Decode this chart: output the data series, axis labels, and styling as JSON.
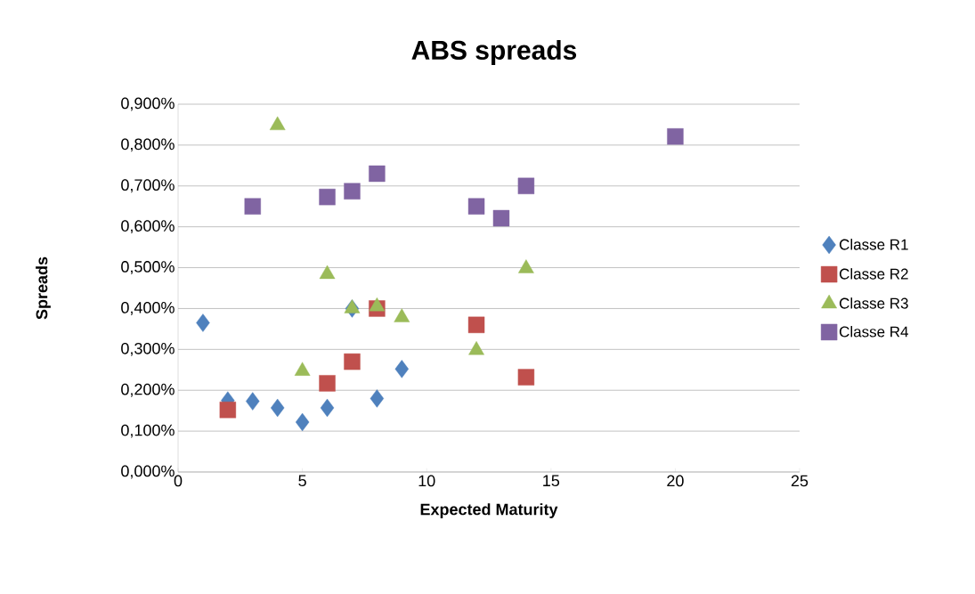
{
  "chart_data": {
    "type": "scatter",
    "title": "ABS spreads",
    "xlabel": "Expected Maturity",
    "ylabel": "Spreads",
    "xlim": [
      0,
      25
    ],
    "xticks": [
      0,
      5,
      10,
      15,
      20,
      25
    ],
    "ylim": [
      0,
      0.9
    ],
    "yticks": [
      {
        "value": 0,
        "label": "0,000%"
      },
      {
        "value": 0.1,
        "label": "0,100%"
      },
      {
        "value": 0.2,
        "label": "0,200%"
      },
      {
        "value": 0.3,
        "label": "0,300%"
      },
      {
        "value": 0.4,
        "label": "0,400%"
      },
      {
        "value": 0.5,
        "label": "0,500%"
      },
      {
        "value": 0.6,
        "label": "0,600%"
      },
      {
        "value": 0.7,
        "label": "0,700%"
      },
      {
        "value": 0.8,
        "label": "0,800%"
      },
      {
        "value": 0.9,
        "label": "0,900%"
      }
    ],
    "grid": "y",
    "legend": "right",
    "series": [
      {
        "name": "Classe R1",
        "color": "#4f81bd",
        "marker": "diamond",
        "x": [
          1,
          2,
          3,
          4,
          5,
          6,
          7,
          8,
          9
        ],
        "values": [
          0.365,
          0.175,
          0.173,
          0.157,
          0.122,
          0.157,
          0.4,
          0.18,
          0.252
        ]
      },
      {
        "name": "Classe R2",
        "color": "#c0504d",
        "marker": "square",
        "x": [
          2,
          6,
          7,
          8,
          12,
          14
        ],
        "values": [
          0.152,
          0.217,
          0.27,
          0.4,
          0.36,
          0.232
        ]
      },
      {
        "name": "Classe R3",
        "color": "#9bbb59",
        "marker": "triangle",
        "x": [
          4,
          5,
          6,
          7,
          8,
          9,
          12,
          14
        ],
        "values": [
          0.848,
          0.247,
          0.484,
          0.4,
          0.405,
          0.378,
          0.298,
          0.498
        ]
      },
      {
        "name": "Classe R4",
        "color": "#8064a2",
        "marker": "square",
        "x": [
          3,
          6,
          7,
          8,
          12,
          13,
          14,
          20
        ],
        "values": [
          0.65,
          0.673,
          0.687,
          0.73,
          0.65,
          0.621,
          0.7,
          0.821
        ]
      }
    ]
  }
}
